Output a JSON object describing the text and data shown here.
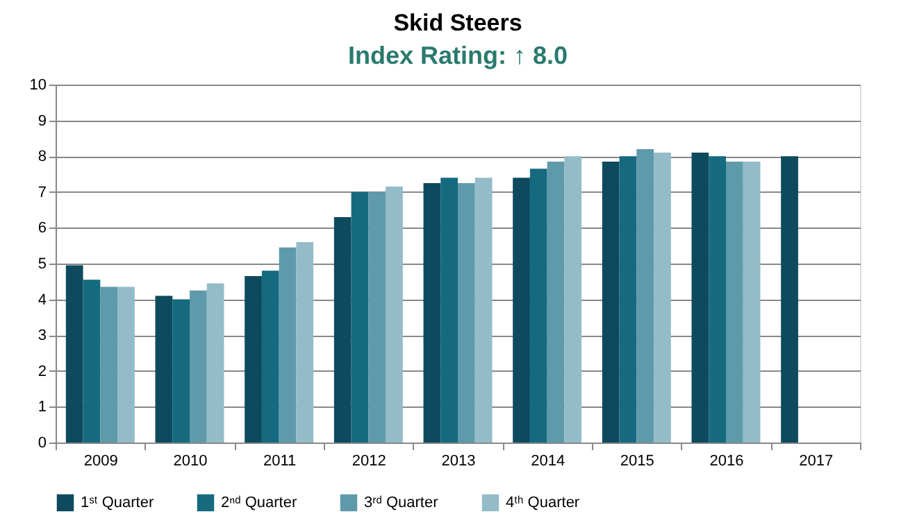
{
  "chart_data": {
    "type": "bar",
    "title": "Skid Steers",
    "subtitle": "Index Rating: ↑ 8.0",
    "categories": [
      "2009",
      "2010",
      "2011",
      "2012",
      "2013",
      "2014",
      "2015",
      "2016",
      "2017"
    ],
    "series": [
      {
        "name": "1ˢᵗ Quarter",
        "color": "#0d4a5e",
        "values": [
          4.95,
          4.1,
          4.65,
          6.3,
          7.25,
          7.4,
          7.85,
          8.1,
          8.0
        ]
      },
      {
        "name": "2ⁿᵈ Quarter",
        "color": "#156a80",
        "values": [
          4.55,
          4.0,
          4.8,
          7.0,
          7.4,
          7.65,
          8.0,
          8.0,
          null
        ]
      },
      {
        "name": "3ʳᵈ Quarter",
        "color": "#5f9aab",
        "values": [
          4.35,
          4.25,
          5.45,
          7.0,
          7.25,
          7.85,
          8.2,
          7.85,
          null
        ]
      },
      {
        "name": "4ᵗʰ Quarter",
        "color": "#94bcc8",
        "values": [
          4.35,
          4.45,
          5.6,
          7.15,
          7.4,
          8.0,
          8.1,
          7.85,
          null
        ]
      }
    ],
    "ylim": [
      0,
      10
    ],
    "yticks": [
      0,
      1,
      2,
      3,
      4,
      5,
      6,
      7,
      8,
      9,
      10
    ],
    "grid": "y",
    "legend": "bottom"
  }
}
